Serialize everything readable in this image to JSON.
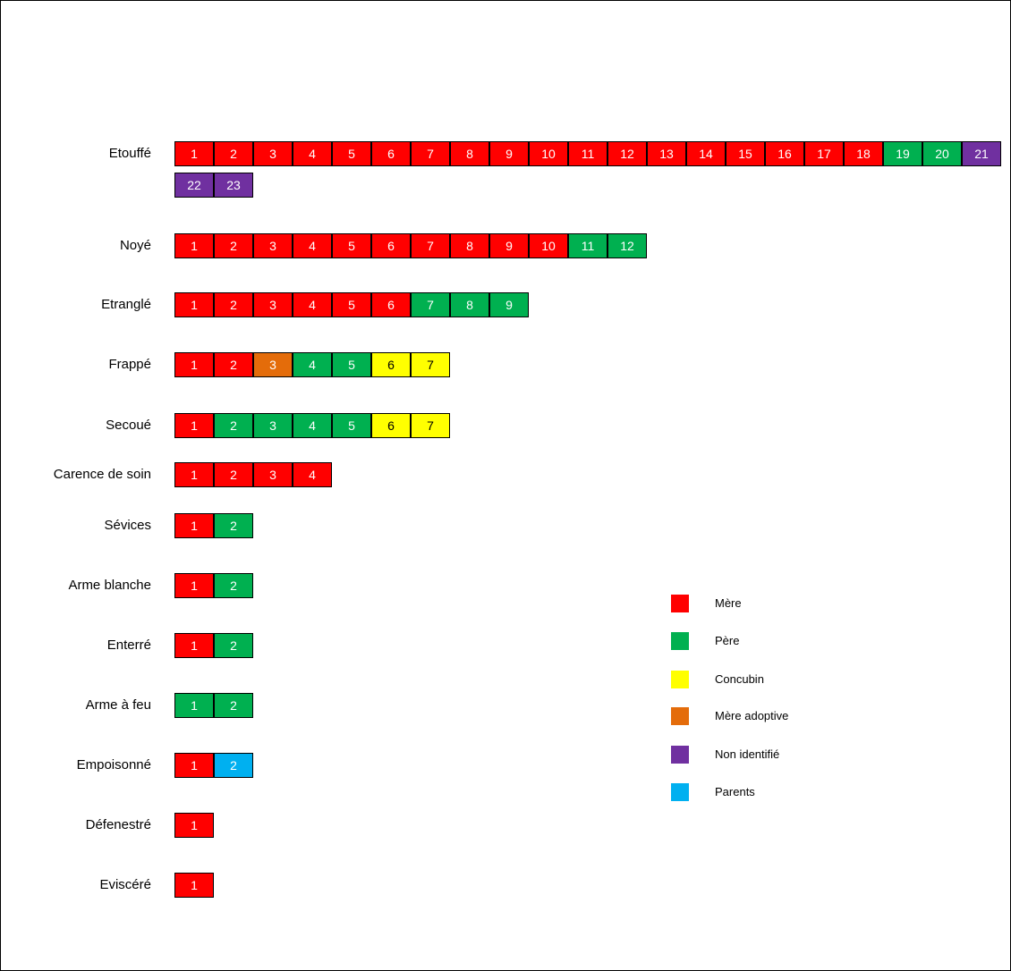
{
  "legend": [
    {
      "key": "mere",
      "label": "Mère",
      "color": "#ff0000"
    },
    {
      "key": "pere",
      "label": "Père",
      "color": "#00b050"
    },
    {
      "key": "concubin",
      "label": "Concubin",
      "color": "#ffff00"
    },
    {
      "key": "mere_adoptive",
      "label": "Mère adoptive",
      "color": "#e46c0a"
    },
    {
      "key": "non_identifie",
      "label": "Non identifié",
      "color": "#7030a0"
    },
    {
      "key": "parents",
      "label": "Parents",
      "color": "#00b0f0"
    }
  ],
  "rows": [
    {
      "label": "Etouffé",
      "cells": [
        {
          "n": "1",
          "c": "mere"
        },
        {
          "n": "2",
          "c": "mere"
        },
        {
          "n": "3",
          "c": "mere"
        },
        {
          "n": "4",
          "c": "mere"
        },
        {
          "n": "5",
          "c": "mere"
        },
        {
          "n": "6",
          "c": "mere"
        },
        {
          "n": "7",
          "c": "mere"
        },
        {
          "n": "8",
          "c": "mere"
        },
        {
          "n": "9",
          "c": "mere"
        },
        {
          "n": "10",
          "c": "mere"
        },
        {
          "n": "11",
          "c": "mere"
        },
        {
          "n": "12",
          "c": "mere"
        },
        {
          "n": "13",
          "c": "mere"
        },
        {
          "n": "14",
          "c": "mere"
        },
        {
          "n": "15",
          "c": "mere"
        },
        {
          "n": "16",
          "c": "mere"
        },
        {
          "n": "17",
          "c": "mere"
        },
        {
          "n": "18",
          "c": "mere"
        },
        {
          "n": "19",
          "c": "pere"
        },
        {
          "n": "20",
          "c": "pere"
        },
        {
          "n": "21",
          "c": "non_identifie"
        },
        {
          "n": "22",
          "c": "non_identifie"
        },
        {
          "n": "23",
          "c": "non_identifie"
        }
      ]
    },
    {
      "label": "Noyé",
      "cells": [
        {
          "n": "1",
          "c": "mere"
        },
        {
          "n": "2",
          "c": "mere"
        },
        {
          "n": "3",
          "c": "mere"
        },
        {
          "n": "4",
          "c": "mere"
        },
        {
          "n": "5",
          "c": "mere"
        },
        {
          "n": "6",
          "c": "mere"
        },
        {
          "n": "7",
          "c": "mere"
        },
        {
          "n": "8",
          "c": "mere"
        },
        {
          "n": "9",
          "c": "mere"
        },
        {
          "n": "10",
          "c": "mere"
        },
        {
          "n": "11",
          "c": "pere"
        },
        {
          "n": "12",
          "c": "pere"
        }
      ]
    },
    {
      "label": "Etranglé",
      "cells": [
        {
          "n": "1",
          "c": "mere"
        },
        {
          "n": "2",
          "c": "mere"
        },
        {
          "n": "3",
          "c": "mere"
        },
        {
          "n": "4",
          "c": "mere"
        },
        {
          "n": "5",
          "c": "mere"
        },
        {
          "n": "6",
          "c": "mere"
        },
        {
          "n": "7",
          "c": "pere"
        },
        {
          "n": "8",
          "c": "pere"
        },
        {
          "n": "9",
          "c": "pere"
        }
      ]
    },
    {
      "label": "Frappé",
      "cells": [
        {
          "n": "1",
          "c": "mere"
        },
        {
          "n": "2",
          "c": "mere"
        },
        {
          "n": "3",
          "c": "mere_adoptive"
        },
        {
          "n": "4",
          "c": "pere"
        },
        {
          "n": "5",
          "c": "pere"
        },
        {
          "n": "6",
          "c": "concubin"
        },
        {
          "n": "7",
          "c": "concubin"
        }
      ]
    },
    {
      "label": "Secoué",
      "cells": [
        {
          "n": "1",
          "c": "mere"
        },
        {
          "n": "2",
          "c": "pere"
        },
        {
          "n": "3",
          "c": "pere"
        },
        {
          "n": "4",
          "c": "pere"
        },
        {
          "n": "5",
          "c": "pere"
        },
        {
          "n": "6",
          "c": "concubin"
        },
        {
          "n": "7",
          "c": "concubin"
        }
      ]
    },
    {
      "label": "Carence de soin",
      "cells": [
        {
          "n": "1",
          "c": "mere"
        },
        {
          "n": "2",
          "c": "mere"
        },
        {
          "n": "3",
          "c": "mere"
        },
        {
          "n": "4",
          "c": "mere"
        }
      ]
    },
    {
      "label": "Sévices",
      "cells": [
        {
          "n": "1",
          "c": "mere"
        },
        {
          "n": "2",
          "c": "pere"
        }
      ]
    },
    {
      "label": "Arme blanche",
      "cells": [
        {
          "n": "1",
          "c": "mere"
        },
        {
          "n": "2",
          "c": "pere"
        }
      ]
    },
    {
      "label": "Enterré",
      "cells": [
        {
          "n": "1",
          "c": "mere"
        },
        {
          "n": "2",
          "c": "pere"
        }
      ]
    },
    {
      "label": "Arme à feu",
      "cells": [
        {
          "n": "1",
          "c": "pere"
        },
        {
          "n": "2",
          "c": "pere"
        }
      ]
    },
    {
      "label": "Empoisonné",
      "cells": [
        {
          "n": "1",
          "c": "mere"
        },
        {
          "n": "2",
          "c": "parents"
        }
      ]
    },
    {
      "label": "Défenestré",
      "cells": [
        {
          "n": "1",
          "c": "mere"
        }
      ]
    },
    {
      "label": "Eviscéré",
      "cells": [
        {
          "n": "1",
          "c": "mere"
        }
      ]
    }
  ]
}
